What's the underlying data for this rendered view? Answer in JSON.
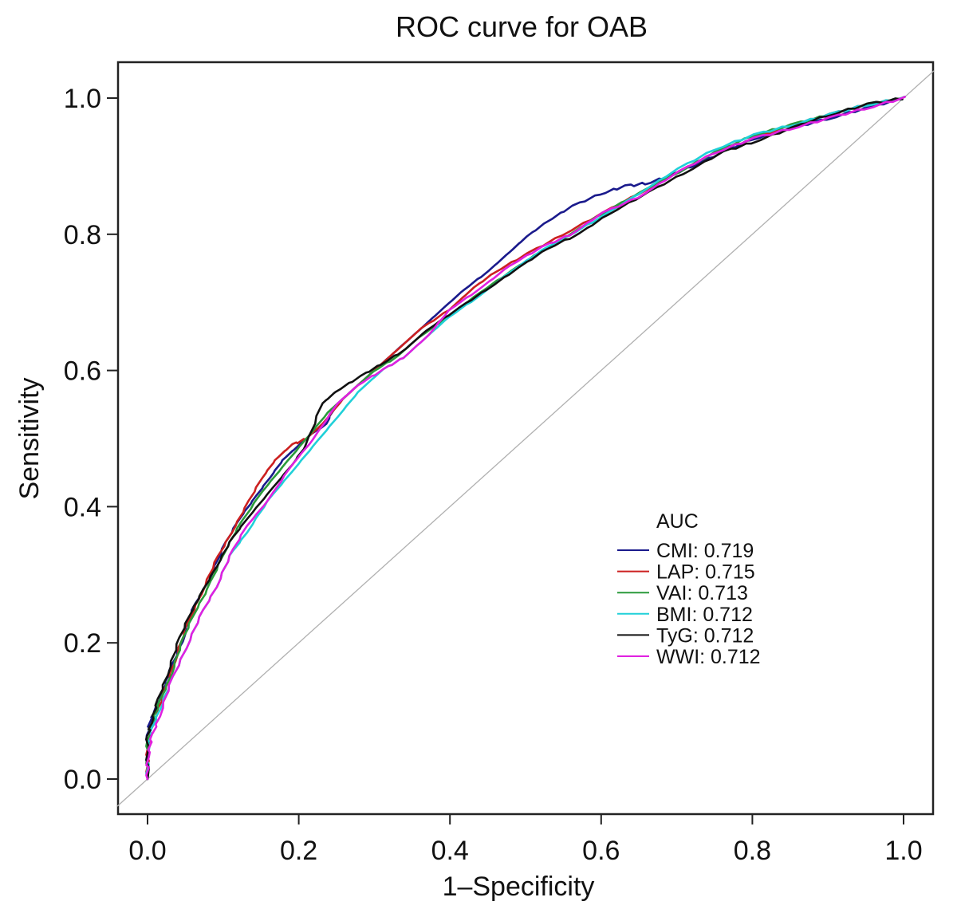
{
  "chart_data": {
    "type": "line",
    "title": "ROC curve for OAB",
    "xlabel": "1–Specificity",
    "ylabel": "Sensitivity",
    "xlim": [
      -0.04,
      1.04
    ],
    "ylim": [
      -0.05,
      1.05
    ],
    "xticks": [
      "0.0",
      "0.2",
      "0.4",
      "0.6",
      "0.8",
      "1.0"
    ],
    "xtick_values": [
      0,
      0.2,
      0.4,
      0.6,
      0.8,
      1.0
    ],
    "yticks": [
      "0.0",
      "0.2",
      "0.4",
      "0.6",
      "0.8",
      "1.0"
    ],
    "ytick_values": [
      0,
      0.2,
      0.4,
      0.6,
      0.8,
      1.0
    ],
    "grid": false,
    "reference_line": {
      "name": "chance diagonal",
      "x": [
        0,
        1
      ],
      "y": [
        0,
        1
      ],
      "color": "#b0b0b0"
    },
    "legend": {
      "title": "AUC",
      "placement": "center-right"
    },
    "series": [
      {
        "name": "CMI",
        "auc": "0.719",
        "label": "CMI: 0.719",
        "color": "#1a1a8c",
        "x": [
          0,
          0,
          0.003,
          0.01,
          0.02,
          0.03,
          0.045,
          0.06,
          0.08,
          0.1,
          0.12,
          0.14,
          0.16,
          0.18,
          0.2,
          0.22,
          0.235,
          0.25,
          0.27,
          0.3,
          0.33,
          0.36,
          0.39,
          0.42,
          0.45,
          0.48,
          0.5,
          0.53,
          0.56,
          0.6,
          0.63,
          0.66,
          0.69,
          0.72,
          0.76,
          0.8,
          0.85,
          0.9,
          0.95,
          1
        ],
        "y": [
          0,
          0.06,
          0.085,
          0.1,
          0.13,
          0.16,
          0.2,
          0.25,
          0.29,
          0.34,
          0.38,
          0.41,
          0.44,
          0.47,
          0.49,
          0.51,
          0.52,
          0.55,
          0.57,
          0.6,
          0.63,
          0.66,
          0.69,
          0.72,
          0.745,
          0.775,
          0.795,
          0.82,
          0.84,
          0.86,
          0.87,
          0.875,
          0.885,
          0.9,
          0.92,
          0.94,
          0.955,
          0.97,
          0.985,
          1
        ]
      },
      {
        "name": "LAP",
        "auc": "0.715",
        "label": "LAP: 0.715",
        "color": "#cc2020",
        "x": [
          0,
          0,
          0.005,
          0.01,
          0.02,
          0.035,
          0.05,
          0.07,
          0.09,
          0.11,
          0.13,
          0.15,
          0.17,
          0.19,
          0.21,
          0.23,
          0.26,
          0.3,
          0.33,
          0.36,
          0.4,
          0.43,
          0.46,
          0.5,
          0.55,
          0.6,
          0.65,
          0.7,
          0.75,
          0.8,
          0.85,
          0.9,
          0.95,
          1
        ],
        "y": [
          0,
          0.05,
          0.07,
          0.09,
          0.12,
          0.17,
          0.22,
          0.27,
          0.32,
          0.36,
          0.4,
          0.44,
          0.47,
          0.49,
          0.5,
          0.52,
          0.56,
          0.6,
          0.63,
          0.66,
          0.69,
          0.72,
          0.745,
          0.77,
          0.8,
          0.83,
          0.86,
          0.89,
          0.92,
          0.94,
          0.96,
          0.975,
          0.99,
          1
        ]
      },
      {
        "name": "VAI",
        "auc": "0.713",
        "label": "VAI: 0.713",
        "color": "#2a9a3a",
        "x": [
          0,
          0,
          0.005,
          0.015,
          0.03,
          0.045,
          0.06,
          0.08,
          0.1,
          0.12,
          0.15,
          0.18,
          0.21,
          0.24,
          0.27,
          0.3,
          0.33,
          0.36,
          0.4,
          0.44,
          0.48,
          0.52,
          0.56,
          0.6,
          0.65,
          0.7,
          0.75,
          0.8,
          0.85,
          0.9,
          0.95,
          1
        ],
        "y": [
          0,
          0.05,
          0.08,
          0.11,
          0.15,
          0.2,
          0.24,
          0.28,
          0.33,
          0.37,
          0.42,
          0.46,
          0.5,
          0.54,
          0.57,
          0.6,
          0.62,
          0.65,
          0.68,
          0.715,
          0.745,
          0.775,
          0.8,
          0.83,
          0.86,
          0.89,
          0.92,
          0.945,
          0.96,
          0.975,
          0.99,
          1
        ]
      },
      {
        "name": "BMI",
        "auc": "0.712",
        "label": "BMI: 0.712",
        "color": "#20d0d8",
        "x": [
          0,
          0,
          0.005,
          0.015,
          0.03,
          0.05,
          0.07,
          0.09,
          0.11,
          0.13,
          0.16,
          0.19,
          0.22,
          0.25,
          0.28,
          0.31,
          0.34,
          0.37,
          0.4,
          0.44,
          0.48,
          0.52,
          0.56,
          0.6,
          0.65,
          0.7,
          0.75,
          0.8,
          0.85,
          0.9,
          0.95,
          1
        ],
        "y": [
          0,
          0.04,
          0.07,
          0.1,
          0.14,
          0.19,
          0.24,
          0.28,
          0.33,
          0.36,
          0.41,
          0.45,
          0.49,
          0.53,
          0.57,
          0.6,
          0.62,
          0.65,
          0.68,
          0.71,
          0.745,
          0.775,
          0.8,
          0.825,
          0.86,
          0.895,
          0.925,
          0.945,
          0.96,
          0.975,
          0.99,
          1
        ]
      },
      {
        "name": "TyG",
        "auc": "0.712",
        "label": "TyG: 0.712",
        "color": "#111111",
        "x": [
          0,
          0,
          0.004,
          0.012,
          0.025,
          0.04,
          0.055,
          0.07,
          0.09,
          0.11,
          0.13,
          0.16,
          0.19,
          0.21,
          0.23,
          0.25,
          0.28,
          0.31,
          0.34,
          0.37,
          0.41,
          0.45,
          0.49,
          0.53,
          0.57,
          0.61,
          0.66,
          0.71,
          0.76,
          0.8,
          0.85,
          0.9,
          0.95,
          1
        ],
        "y": [
          0,
          0.06,
          0.08,
          0.11,
          0.15,
          0.2,
          0.24,
          0.27,
          0.31,
          0.35,
          0.38,
          0.42,
          0.46,
          0.49,
          0.55,
          0.57,
          0.59,
          0.61,
          0.63,
          0.66,
          0.69,
          0.72,
          0.75,
          0.78,
          0.8,
          0.83,
          0.86,
          0.89,
          0.92,
          0.935,
          0.955,
          0.975,
          0.99,
          1
        ]
      },
      {
        "name": "WWI",
        "auc": "0.712",
        "label": "WWI: 0.712",
        "color": "#e020e0",
        "x": [
          0,
          0,
          0.005,
          0.015,
          0.03,
          0.05,
          0.07,
          0.09,
          0.11,
          0.13,
          0.16,
          0.19,
          0.22,
          0.25,
          0.28,
          0.31,
          0.34,
          0.37,
          0.4,
          0.44,
          0.48,
          0.52,
          0.56,
          0.6,
          0.65,
          0.7,
          0.75,
          0.8,
          0.85,
          0.9,
          0.95,
          1
        ],
        "y": [
          0,
          0.03,
          0.06,
          0.09,
          0.14,
          0.19,
          0.24,
          0.28,
          0.33,
          0.37,
          0.41,
          0.46,
          0.5,
          0.55,
          0.58,
          0.6,
          0.62,
          0.65,
          0.69,
          0.72,
          0.755,
          0.78,
          0.8,
          0.83,
          0.855,
          0.89,
          0.92,
          0.94,
          0.955,
          0.97,
          0.985,
          1
        ]
      }
    ]
  }
}
